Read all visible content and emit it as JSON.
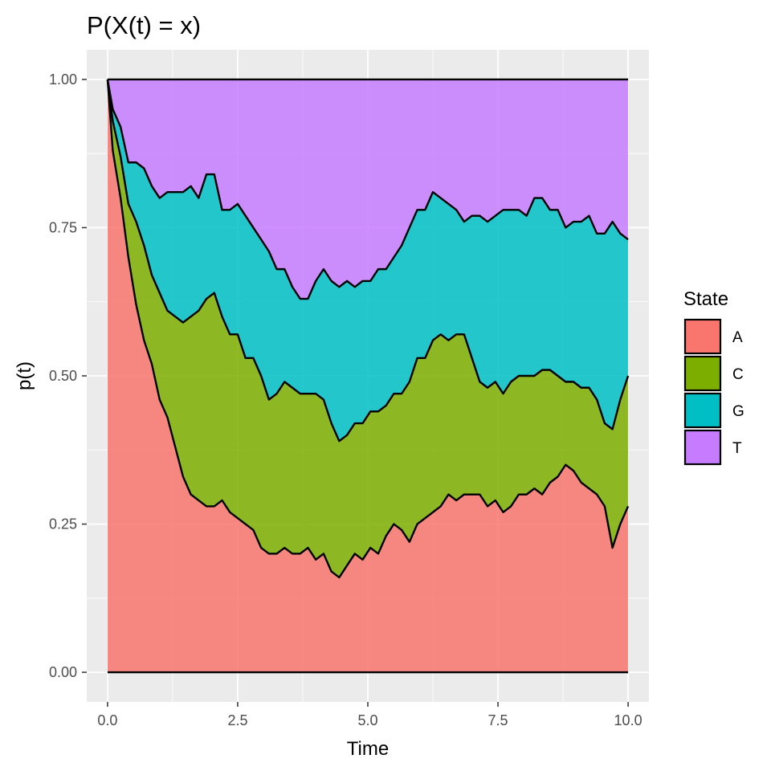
{
  "chart_data": {
    "type": "area",
    "stacked": true,
    "title": "P(X(t) = x)",
    "xlabel": "Time",
    "ylabel": "p(t)",
    "xlim": [
      -0.4,
      10.4
    ],
    "ylim": [
      -0.05,
      1.05
    ],
    "x_ticks": [
      0,
      2.5,
      5,
      7.5,
      10
    ],
    "x_tick_labels": [
      "0.0",
      "2.5",
      "5.0",
      "7.5",
      "10.0"
    ],
    "y_ticks": [
      0,
      0.25,
      0.5,
      0.75,
      1
    ],
    "y_tick_labels": [
      "0.00",
      "0.25",
      "0.50",
      "0.75",
      "1.00"
    ],
    "grid": true,
    "legend": {
      "title": "State",
      "position": "right"
    },
    "x": [
      0,
      0.1,
      0.25,
      0.4,
      0.55,
      0.7,
      0.85,
      1.0,
      1.15,
      1.3,
      1.45,
      1.6,
      1.75,
      1.9,
      2.05,
      2.2,
      2.35,
      2.5,
      2.65,
      2.8,
      2.95,
      3.1,
      3.25,
      3.4,
      3.55,
      3.7,
      3.85,
      4.0,
      4.15,
      4.3,
      4.45,
      4.6,
      4.75,
      4.9,
      5.05,
      5.2,
      5.35,
      5.5,
      5.65,
      5.8,
      5.95,
      6.1,
      6.25,
      6.4,
      6.55,
      6.7,
      6.85,
      7.0,
      7.15,
      7.3,
      7.45,
      7.6,
      7.75,
      7.9,
      8.05,
      8.2,
      8.35,
      8.5,
      8.65,
      8.8,
      8.95,
      9.1,
      9.25,
      9.4,
      9.55,
      9.7,
      9.85,
      10.0
    ],
    "series": [
      {
        "name": "A",
        "color": "#F8766D",
        "values": [
          1.0,
          0.88,
          0.8,
          0.7,
          0.62,
          0.56,
          0.52,
          0.46,
          0.43,
          0.38,
          0.33,
          0.3,
          0.29,
          0.28,
          0.28,
          0.29,
          0.27,
          0.26,
          0.25,
          0.24,
          0.21,
          0.2,
          0.2,
          0.21,
          0.2,
          0.2,
          0.21,
          0.19,
          0.2,
          0.17,
          0.16,
          0.18,
          0.2,
          0.19,
          0.21,
          0.2,
          0.23,
          0.25,
          0.24,
          0.22,
          0.25,
          0.26,
          0.27,
          0.28,
          0.3,
          0.29,
          0.3,
          0.3,
          0.3,
          0.28,
          0.29,
          0.27,
          0.28,
          0.3,
          0.3,
          0.31,
          0.3,
          0.32,
          0.33,
          0.35,
          0.34,
          0.32,
          0.31,
          0.3,
          0.28,
          0.21,
          0.25,
          0.28
        ]
      },
      {
        "name": "C",
        "color": "#7CAE00",
        "values": [
          0,
          0.05,
          0.07,
          0.09,
          0.14,
          0.16,
          0.15,
          0.18,
          0.18,
          0.22,
          0.26,
          0.3,
          0.32,
          0.35,
          0.36,
          0.31,
          0.3,
          0.31,
          0.28,
          0.29,
          0.29,
          0.26,
          0.27,
          0.28,
          0.28,
          0.27,
          0.26,
          0.28,
          0.26,
          0.25,
          0.23,
          0.22,
          0.22,
          0.23,
          0.23,
          0.24,
          0.22,
          0.22,
          0.23,
          0.27,
          0.28,
          0.27,
          0.29,
          0.29,
          0.26,
          0.28,
          0.27,
          0.23,
          0.19,
          0.2,
          0.2,
          0.2,
          0.21,
          0.2,
          0.2,
          0.19,
          0.21,
          0.19,
          0.17,
          0.14,
          0.15,
          0.16,
          0.17,
          0.16,
          0.14,
          0.2,
          0.21,
          0.22
        ]
      },
      {
        "name": "G",
        "color": "#00BFC4",
        "values": [
          0,
          0.02,
          0.05,
          0.07,
          0.1,
          0.13,
          0.15,
          0.16,
          0.2,
          0.21,
          0.22,
          0.22,
          0.19,
          0.21,
          0.2,
          0.18,
          0.21,
          0.22,
          0.24,
          0.22,
          0.23,
          0.25,
          0.21,
          0.19,
          0.17,
          0.16,
          0.16,
          0.19,
          0.22,
          0.24,
          0.26,
          0.26,
          0.23,
          0.24,
          0.22,
          0.24,
          0.23,
          0.23,
          0.25,
          0.26,
          0.25,
          0.25,
          0.25,
          0.23,
          0.23,
          0.21,
          0.19,
          0.24,
          0.28,
          0.28,
          0.28,
          0.31,
          0.29,
          0.28,
          0.27,
          0.3,
          0.29,
          0.27,
          0.28,
          0.26,
          0.27,
          0.28,
          0.29,
          0.28,
          0.32,
          0.35,
          0.28,
          0.23
        ]
      },
      {
        "name": "T",
        "color": "#C77CFF",
        "values": [
          0,
          0.05,
          0.08,
          0.14,
          0.14,
          0.15,
          0.18,
          0.2,
          0.19,
          0.19,
          0.19,
          0.18,
          0.2,
          0.16,
          0.16,
          0.22,
          0.22,
          0.21,
          0.23,
          0.25,
          0.27,
          0.29,
          0.32,
          0.32,
          0.35,
          0.37,
          0.37,
          0.34,
          0.32,
          0.34,
          0.35,
          0.34,
          0.35,
          0.34,
          0.34,
          0.32,
          0.32,
          0.3,
          0.28,
          0.25,
          0.22,
          0.22,
          0.19,
          0.2,
          0.21,
          0.22,
          0.24,
          0.23,
          0.23,
          0.24,
          0.23,
          0.22,
          0.22,
          0.22,
          0.23,
          0.2,
          0.2,
          0.22,
          0.22,
          0.25,
          0.24,
          0.24,
          0.23,
          0.26,
          0.26,
          0.24,
          0.26,
          0.27
        ]
      }
    ]
  }
}
